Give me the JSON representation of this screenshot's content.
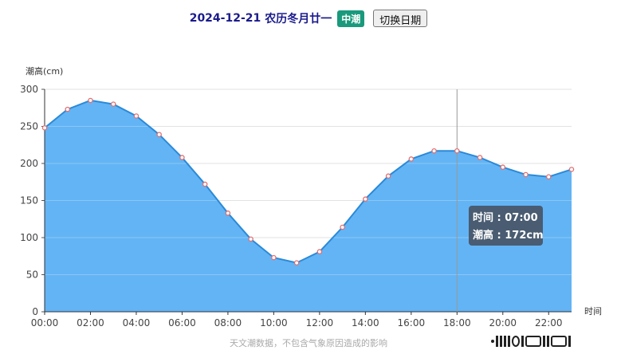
{
  "header": {
    "date": "2024-12-21",
    "lunar": "农历冬月廿一",
    "tide_type": "中潮",
    "switch_label": "切换日期"
  },
  "chart_data": {
    "type": "area",
    "ylabel": "潮高(cm)",
    "xlabel": "时间",
    "ylim": [
      0,
      300
    ],
    "y_ticks": [
      0,
      50,
      100,
      150,
      200,
      250,
      300
    ],
    "x_ticks": [
      "00:00",
      "02:00",
      "04:00",
      "06:00",
      "08:00",
      "10:00",
      "12:00",
      "14:00",
      "16:00",
      "18:00",
      "20:00",
      "22:00"
    ],
    "x_hours": [
      0,
      1,
      2,
      3,
      4,
      5,
      6,
      7,
      8,
      9,
      10,
      11,
      12,
      13,
      14,
      15,
      16,
      17,
      18,
      19,
      20,
      21,
      22,
      23
    ],
    "values": [
      248,
      273,
      285,
      280,
      264,
      239,
      208,
      172,
      133,
      98,
      73,
      66,
      81,
      114,
      152,
      183,
      206,
      217,
      217,
      208,
      195,
      185,
      182,
      192
    ],
    "grid": true,
    "colors": {
      "area": "#63b4f5",
      "line": "#2a8ad8",
      "point": "#e07070"
    },
    "tooltip": {
      "time_label": "时间 : 07:00",
      "height_label": "潮高 : 172cm",
      "cursor_hour": 18
    }
  },
  "footer": {
    "note": "天文潮数据，不包含气象原因造成的影响"
  }
}
